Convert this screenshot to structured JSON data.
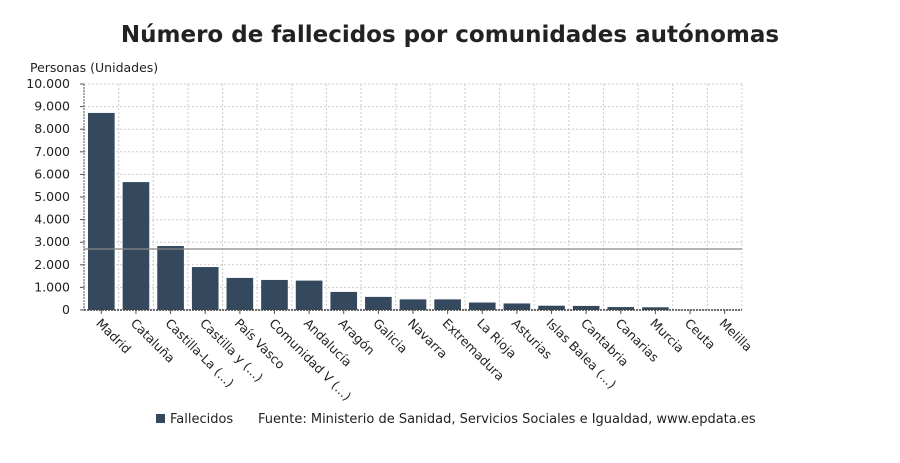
{
  "chart_data": {
    "type": "bar",
    "title": "Número de fallecidos por comunidades autónomas",
    "ylabel": "Personas (Unidades)",
    "xlabel": "",
    "ylim": [
      0,
      10000
    ],
    "yticks": [
      0,
      1000,
      2000,
      3000,
      4000,
      5000,
      6000,
      7000,
      8000,
      9000,
      10000
    ],
    "ytick_labels": [
      "0",
      "1.000",
      "2.000",
      "3.000",
      "4.000",
      "5.000",
      "6.000",
      "7.000",
      "8.000",
      "9.000",
      "10.000"
    ],
    "grid": true,
    "categories": [
      "Madrid",
      "Cataluña",
      "Castilla-La (...)",
      "Castilla y (...)",
      "País Vasco",
      "Comunidad V (...)",
      "Andalucía",
      "Aragón",
      "Galicia",
      "Navarra",
      "Extremadura",
      "La Rioja",
      "Asturias",
      "Islas Balea (...)",
      "Cantabria",
      "Canarias",
      "Murcia",
      "Ceuta",
      "Melilla"
    ],
    "series": [
      {
        "name": "Fallecidos",
        "color": "#34495e",
        "values": [
          8720,
          5660,
          2830,
          1900,
          1420,
          1330,
          1300,
          800,
          580,
          470,
          470,
          330,
          290,
          190,
          180,
          130,
          120,
          4,
          2
        ]
      }
    ],
    "reference_line": 2700,
    "legend_position": "bottom-left",
    "source": "Fuente: Ministerio de Sanidad, Servicios Sociales e Igualdad, www.epdata.es"
  }
}
